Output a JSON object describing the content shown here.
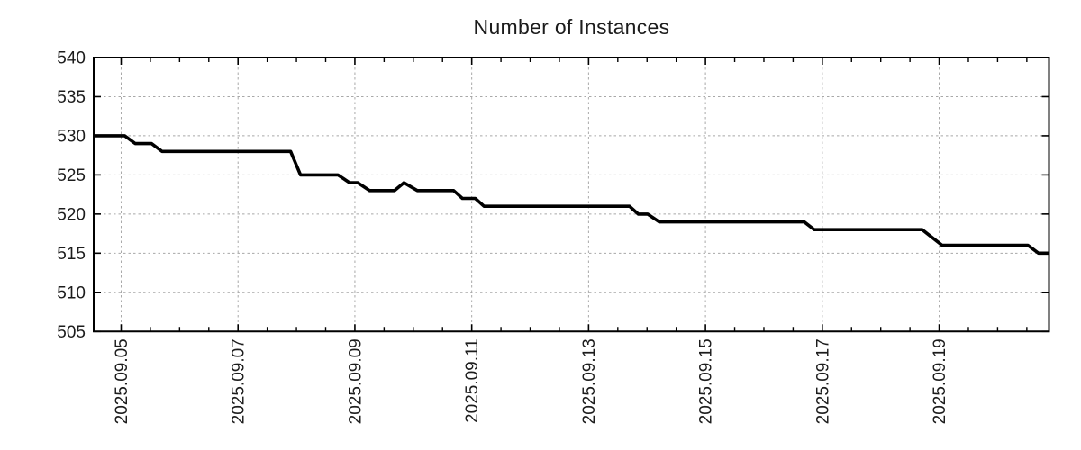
{
  "title": "Number of Instances",
  "colors": {
    "background": "#ffffff",
    "line": "#000000",
    "grid": "#a8a8a8",
    "border": "#000000",
    "text": "#1c1c1c"
  },
  "chart_data": {
    "type": "line",
    "title": "Number of Instances",
    "xlabel": "",
    "ylabel": "",
    "legend": "none",
    "grid": "dashed gray lines at major ticks on both axes",
    "x_unit": "date, expressed as fractional day of 2025-09",
    "x_range": [
      4.53,
      20.88
    ],
    "y_range": [
      505,
      540
    ],
    "x_major_ticks": [
      {
        "x": 5,
        "label": "2025.09.05"
      },
      {
        "x": 7,
        "label": "2025.09.07"
      },
      {
        "x": 9,
        "label": "2025.09.09"
      },
      {
        "x": 11,
        "label": "2025.09.11"
      },
      {
        "x": 13,
        "label": "2025.09.13"
      },
      {
        "x": 15,
        "label": "2025.09.15"
      },
      {
        "x": 17,
        "label": "2025.09.17"
      },
      {
        "x": 19,
        "label": "2025.09.19"
      }
    ],
    "x_minor_tick_step": 0.5,
    "y_ticks": [
      {
        "y": 505,
        "label": "505"
      },
      {
        "y": 510,
        "label": "510"
      },
      {
        "y": 515,
        "label": "515"
      },
      {
        "y": 520,
        "label": "520"
      },
      {
        "y": 525,
        "label": "525"
      },
      {
        "y": 530,
        "label": "530"
      },
      {
        "y": 535,
        "label": "535"
      },
      {
        "y": 540,
        "label": "540"
      }
    ],
    "series": [
      {
        "name": "instances",
        "color": "#000000",
        "line_width": 3.6,
        "points": [
          [
            4.53,
            530
          ],
          [
            5.06,
            530
          ],
          [
            5.24,
            529
          ],
          [
            5.52,
            529
          ],
          [
            5.7,
            528
          ],
          [
            7.9,
            528
          ],
          [
            8.07,
            525
          ],
          [
            8.71,
            525
          ],
          [
            8.91,
            524
          ],
          [
            9.05,
            524
          ],
          [
            9.25,
            523
          ],
          [
            9.68,
            523
          ],
          [
            9.84,
            524
          ],
          [
            10.07,
            523
          ],
          [
            10.69,
            523
          ],
          [
            10.84,
            522
          ],
          [
            11.06,
            522
          ],
          [
            11.21,
            521
          ],
          [
            13.7,
            521
          ],
          [
            13.85,
            520
          ],
          [
            14.01,
            520
          ],
          [
            14.21,
            519
          ],
          [
            16.69,
            519
          ],
          [
            16.86,
            518
          ],
          [
            18.71,
            518
          ],
          [
            19.05,
            516
          ],
          [
            20.52,
            516
          ],
          [
            20.7,
            515
          ],
          [
            20.88,
            515
          ]
        ]
      }
    ]
  },
  "layout_note": "plot box with mirrored inward ticks on all four borders"
}
